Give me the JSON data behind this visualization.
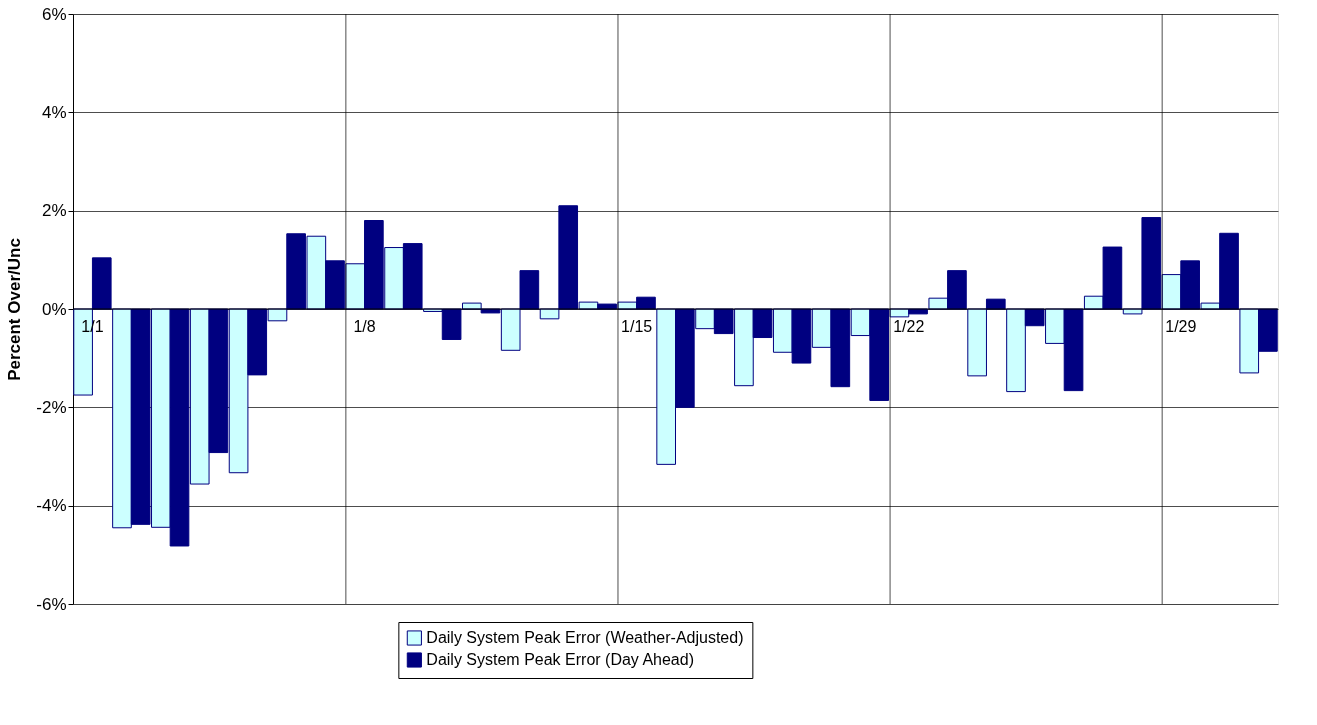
{
  "chart_data": {
    "type": "bar",
    "ylabel": "Percent Over/Unc",
    "categories": [
      "1/1",
      null,
      null,
      null,
      null,
      null,
      null,
      "1/8",
      null,
      null,
      null,
      null,
      null,
      null,
      "1/15",
      null,
      null,
      null,
      null,
      null,
      null,
      "1/22",
      null,
      null,
      null,
      null,
      null,
      null,
      "1/29",
      null,
      null
    ],
    "series": [
      {
        "name": "Daily System Peak Error (Weather-Adjusted)",
        "color": "#ccffff",
        "values": [
          -1.75,
          -4.45,
          -4.44,
          -3.56,
          -3.33,
          -0.24,
          1.48,
          0.92,
          1.25,
          -0.05,
          0.12,
          -0.84,
          -0.2,
          0.14,
          0.14,
          -3.16,
          -0.4,
          -1.56,
          -0.88,
          -0.78,
          -0.54,
          -0.16,
          0.22,
          -1.36,
          -1.68,
          -0.7,
          0.26,
          -0.1,
          0.7,
          0.12,
          -1.3
        ]
      },
      {
        "name": "Daily System Peak Error (Day Ahead)",
        "color": "#000080",
        "values": [
          1.04,
          -4.38,
          -4.82,
          -2.92,
          -1.34,
          1.53,
          0.98,
          1.8,
          1.33,
          -0.62,
          -0.08,
          0.78,
          2.1,
          0.1,
          0.24,
          -2.0,
          -0.5,
          -0.58,
          -1.1,
          -1.58,
          -1.86,
          -0.1,
          0.78,
          0.2,
          -0.34,
          -1.66,
          1.26,
          1.86,
          0.98,
          1.54,
          -0.86
        ]
      }
    ],
    "ylim": [
      -6,
      6
    ],
    "yticks": [
      {
        "value": -6,
        "label": "-6%"
      },
      {
        "value": -4,
        "label": "-4%"
      },
      {
        "value": -2,
        "label": "-2%"
      },
      {
        "value": 0,
        "label": "0%"
      },
      {
        "value": 2,
        "label": "2%"
      },
      {
        "value": 4,
        "label": "4%"
      },
      {
        "value": 6,
        "label": "6%"
      }
    ],
    "grid": true,
    "legend": "bottom"
  }
}
